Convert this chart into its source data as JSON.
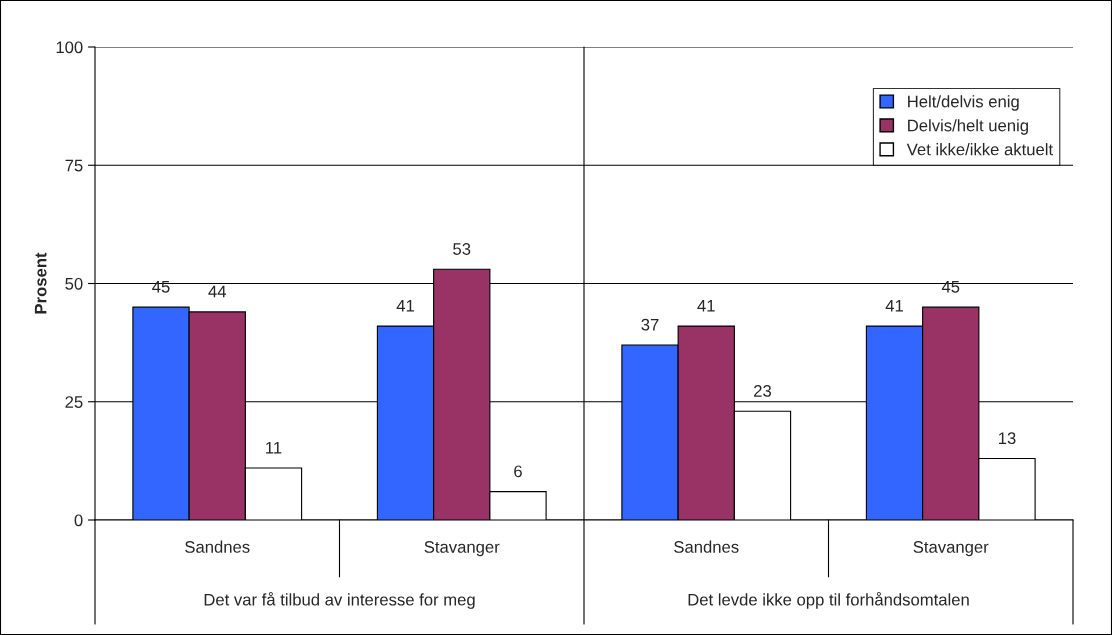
{
  "chart_data": {
    "type": "bar",
    "ylabel": "Prosent",
    "categories": [
      "Sandnes",
      "Stavanger",
      "Sandnes",
      "Stavanger"
    ],
    "series": [
      {
        "name": "Helt/delvis enig",
        "color": "#3366ff",
        "values": [
          45,
          41,
          37,
          41
        ]
      },
      {
        "name": "Delvis/helt uenig",
        "color": "#993366",
        "values": [
          44,
          53,
          41,
          45
        ]
      },
      {
        "name": "Vet ikke/ikke aktuelt",
        "color": "#ffffff",
        "values": [
          11,
          6,
          23,
          13
        ]
      }
    ],
    "annotations": [
      "Det var få tilbud av interesse for meg",
      "Det levde ikke opp til forhåndsomtalen"
    ],
    "ylim": [
      0,
      100
    ],
    "yticks": [
      0,
      25,
      50,
      75,
      100
    ],
    "grid": "y",
    "legend": "top right",
    "data_labels": true
  }
}
